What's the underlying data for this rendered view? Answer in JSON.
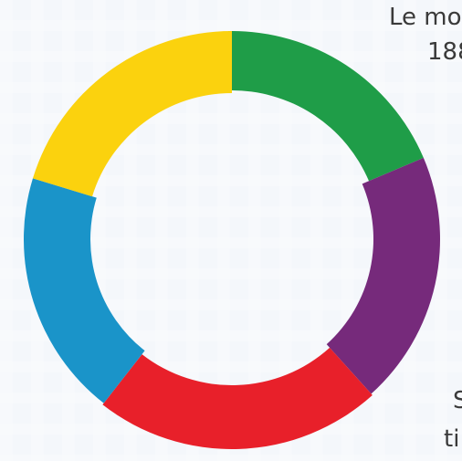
{
  "logo": {
    "segments": [
      {
        "name": "green",
        "color": "#1f9d48"
      },
      {
        "name": "purple",
        "color": "#762a7b"
      },
      {
        "name": "red",
        "color": "#e8202a"
      },
      {
        "name": "blue",
        "color": "#1a94c9"
      },
      {
        "name": "yellow",
        "color": "#fbd20e"
      }
    ]
  },
  "text": {
    "line1": "Le mo",
    "line2": "188",
    "line3": "S",
    "line4": "ti"
  }
}
